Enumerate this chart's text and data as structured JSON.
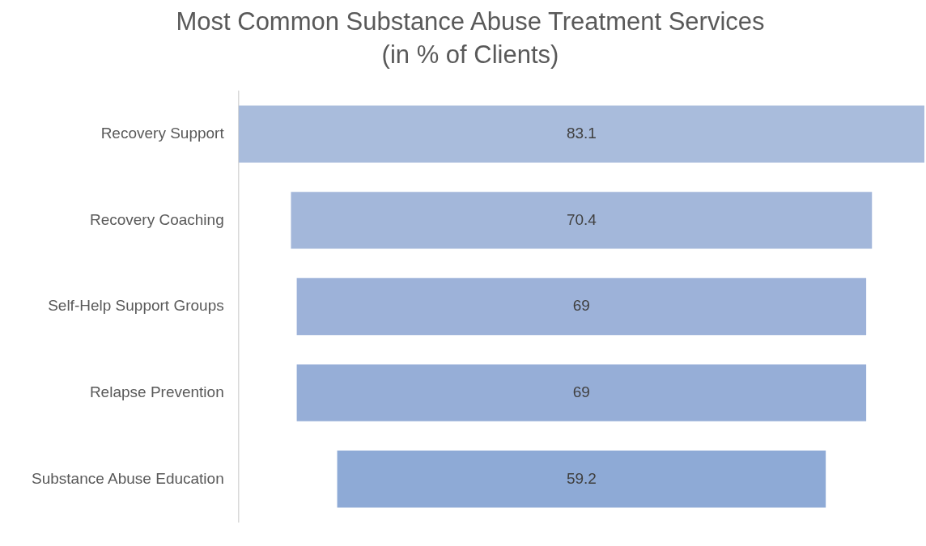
{
  "chart_data": {
    "type": "other",
    "title": "Most Common Substance Abuse Treatment Services",
    "subtitle": "(in % of Clients)",
    "categories": [
      "Recovery Support",
      "Recovery Coaching",
      "Self-Help Support Groups",
      "Relapse Prevention",
      "Substance Abuse Education"
    ],
    "values": [
      83.1,
      70.4,
      69,
      69,
      59.2
    ],
    "colors": [
      "#a9bcdc",
      "#a3b7da",
      "#9db2d9",
      "#96aed7",
      "#8eaad6"
    ],
    "data_labels": true
  }
}
